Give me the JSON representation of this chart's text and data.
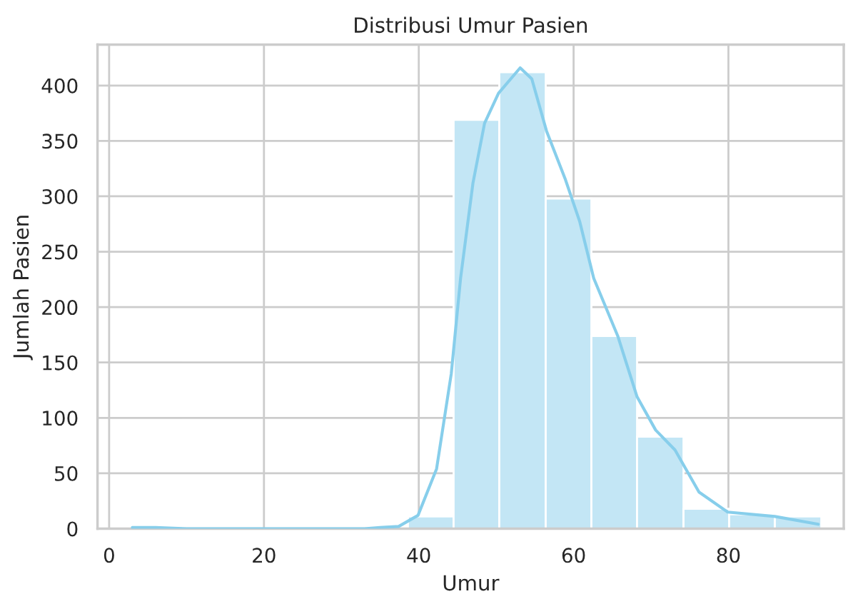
{
  "chart_data": {
    "type": "histogram",
    "title": "Distribusi Umur Pasien",
    "xlabel": "Umur",
    "ylabel": "Jumlah Pasien",
    "series": [
      {
        "color": "#c3e6f5",
        "bins": [
          3,
          8.9,
          14.9,
          20.8,
          26.7,
          32.7,
          38.6,
          44.5,
          50.4,
          56.4,
          62.3,
          68.2,
          74.2,
          80.1,
          86.0,
          92.0
        ],
        "values": [
          1,
          0,
          0,
          0,
          0,
          0,
          11,
          369,
          412,
          298,
          174,
          83,
          18,
          13,
          11
        ]
      },
      {
        "type": "line",
        "color": "#87ceeb",
        "x": [
          3,
          6,
          10,
          15,
          20,
          25,
          30,
          33,
          35,
          37.4,
          39.9,
          42.3,
          44.2,
          45.4,
          47.0,
          48.5,
          50.3,
          53.1,
          54.6,
          56.5,
          58.9,
          60.8,
          62.6,
          65.7,
          68.2,
          70.6,
          73.1,
          76.2,
          79.9,
          86.0,
          91.6
        ],
        "values": [
          1,
          1,
          0,
          0,
          0,
          0,
          0,
          0,
          1,
          2,
          12,
          54,
          140,
          226,
          312,
          366,
          393,
          416,
          406,
          359,
          316,
          277,
          226,
          174,
          119,
          89,
          71,
          33,
          15,
          11,
          4
        ]
      }
    ],
    "xlim": [
      -1.5,
      94.9
    ],
    "ylim": [
      0,
      437
    ],
    "xticks": [
      0,
      20,
      40,
      60,
      80
    ],
    "yticks": [
      0,
      50,
      100,
      150,
      200,
      250,
      300,
      350,
      400
    ],
    "grid": true
  }
}
